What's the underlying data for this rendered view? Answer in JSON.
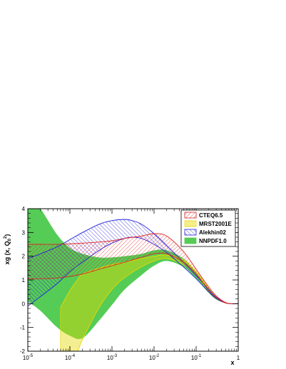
{
  "chart_data": {
    "type": "area",
    "xlabel": "x",
    "ylabel": "xg (x, Q",
    "ylabel_sub": "0",
    "ylabel_sup": "2",
    "ylabel_tail": ")",
    "x_scale": "log",
    "xlim": [
      1e-05,
      1
    ],
    "ylim": [
      -2,
      4
    ],
    "x_ticks": [
      {
        "value": 1e-05,
        "base": "10",
        "exp": "-5"
      },
      {
        "value": 0.0001,
        "base": "10",
        "exp": "-4"
      },
      {
        "value": 0.001,
        "base": "10",
        "exp": "-3"
      },
      {
        "value": 0.01,
        "base": "10",
        "exp": "-2"
      },
      {
        "value": 0.1,
        "base": "10",
        "exp": "-1"
      },
      {
        "value": 1,
        "base": "1",
        "exp": ""
      }
    ],
    "y_ticks": [
      "-2",
      "-1",
      "0",
      "1",
      "2",
      "3",
      "4"
    ],
    "legend_position": "top-right",
    "grid": false,
    "series": [
      {
        "name": "NNPDF1.0",
        "style": "solid",
        "color": "#55cc55",
        "x": [
          1e-05,
          2e-05,
          5e-05,
          0.0001,
          0.0002,
          0.0005,
          0.001,
          0.002,
          0.005,
          0.01,
          0.02,
          0.05,
          0.1,
          0.2,
          0.3,
          0.5,
          0.7,
          1
        ],
        "upper": [
          4.6,
          4.0,
          2.9,
          2.35,
          2.1,
          1.95,
          1.95,
          2.0,
          2.1,
          2.25,
          2.25,
          1.9,
          1.35,
          0.65,
          0.3,
          0.05,
          0.0,
          0.0
        ],
        "lower": [
          0.1,
          -0.3,
          -1.0,
          -1.35,
          -1.45,
          -0.7,
          -0.05,
          0.6,
          1.2,
          1.6,
          1.8,
          1.55,
          1.05,
          0.45,
          0.18,
          0.02,
          0.0,
          0.0
        ]
      },
      {
        "name": "MRST2001E",
        "style": "vertical-hatch",
        "color": "#e6d800",
        "x": [
          6e-05,
          0.0001,
          0.00015,
          0.0002,
          0.0005,
          0.001,
          0.002,
          0.005,
          0.01,
          0.02,
          0.05,
          0.1,
          0.2,
          0.3,
          0.5,
          0.7,
          1
        ],
        "upper": [
          -0.15,
          0.55,
          1.0,
          1.25,
          1.5,
          1.65,
          1.75,
          1.9,
          2.0,
          2.05,
          1.85,
          1.35,
          0.65,
          0.3,
          0.05,
          0.0,
          0.0
        ],
        "lower": [
          -2.0,
          -2.0,
          -2.0,
          -1.5,
          -0.15,
          0.6,
          1.1,
          1.55,
          1.8,
          1.9,
          1.65,
          1.2,
          0.55,
          0.25,
          0.03,
          0.0,
          0.0
        ]
      },
      {
        "name": "Alekhin02",
        "style": "diagonal-hatch",
        "color": "#2222dd",
        "x": [
          1e-05,
          2e-05,
          5e-05,
          0.0001,
          0.0002,
          0.0005,
          0.001,
          0.002,
          0.003,
          0.005,
          0.01,
          0.02,
          0.05,
          0.1,
          0.2,
          0.3,
          0.5,
          0.7,
          1
        ],
        "upper": [
          1.9,
          2.1,
          2.4,
          2.7,
          3.0,
          3.35,
          3.5,
          3.55,
          3.5,
          3.35,
          2.95,
          2.45,
          1.75,
          1.2,
          0.6,
          0.28,
          0.04,
          0.0,
          0.0
        ],
        "lower": [
          -0.1,
          0.3,
          0.85,
          1.35,
          1.75,
          2.25,
          2.55,
          2.75,
          2.8,
          2.75,
          2.5,
          2.15,
          1.55,
          1.05,
          0.5,
          0.22,
          0.03,
          0.0,
          0.0
        ]
      },
      {
        "name": "CTEQ6.5",
        "style": "diagonal-hatch",
        "color": "#dd2222",
        "x": [
          1e-05,
          2e-05,
          5e-05,
          0.0001,
          0.0002,
          0.0005,
          0.001,
          0.002,
          0.005,
          0.01,
          0.02,
          0.05,
          0.1,
          0.2,
          0.3,
          0.5,
          0.7,
          1
        ],
        "upper": [
          2.5,
          2.5,
          2.5,
          2.52,
          2.55,
          2.6,
          2.65,
          2.75,
          2.85,
          2.95,
          2.85,
          2.2,
          1.45,
          0.7,
          0.33,
          0.05,
          0.0,
          0.0
        ],
        "lower": [
          1.05,
          1.05,
          1.08,
          1.15,
          1.25,
          1.45,
          1.6,
          1.75,
          1.95,
          2.1,
          2.1,
          1.75,
          1.25,
          0.55,
          0.25,
          0.03,
          0.0,
          0.0
        ]
      }
    ]
  }
}
